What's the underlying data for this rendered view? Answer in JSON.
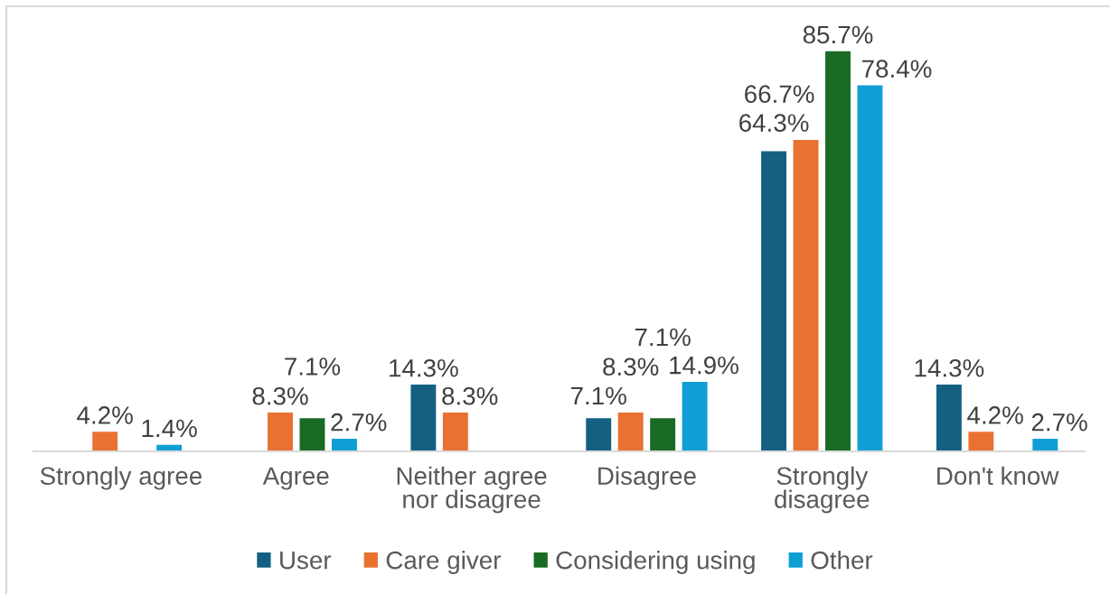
{
  "chart_data": {
    "type": "bar",
    "categories": [
      "Strongly agree",
      "Agree",
      "Neither agree nor disagree",
      "Disagree",
      "Strongly disagree",
      "Don't know"
    ],
    "series": [
      {
        "name": "User",
        "color": "#156082",
        "values": [
          null,
          null,
          14.3,
          7.1,
          64.3,
          14.3
        ],
        "value_labels": [
          null,
          null,
          "14.3%",
          "7.1%",
          "64.3%",
          "14.3%"
        ]
      },
      {
        "name": "Care giver",
        "color": "#e97132",
        "values": [
          4.2,
          8.3,
          8.3,
          8.3,
          66.7,
          4.2
        ],
        "value_labels": [
          "4.2%",
          "8.3%",
          "8.3%",
          "8.3%",
          "66.7%",
          "4.2%"
        ]
      },
      {
        "name": "Considering using",
        "color": "#196b24",
        "values": [
          null,
          7.1,
          null,
          7.1,
          85.7,
          null
        ],
        "value_labels": [
          null,
          "7.1%",
          null,
          "7.1%",
          "85.7%",
          null
        ]
      },
      {
        "name": "Other",
        "color": "#0f9ed5",
        "values": [
          1.4,
          2.7,
          null,
          14.9,
          78.4,
          2.7
        ],
        "value_labels": [
          "1.4%",
          "2.7%",
          null,
          "14.9%",
          "78.4%",
          "2.7%"
        ]
      }
    ],
    "legend": "bottom",
    "tick_labels": "x"
  }
}
